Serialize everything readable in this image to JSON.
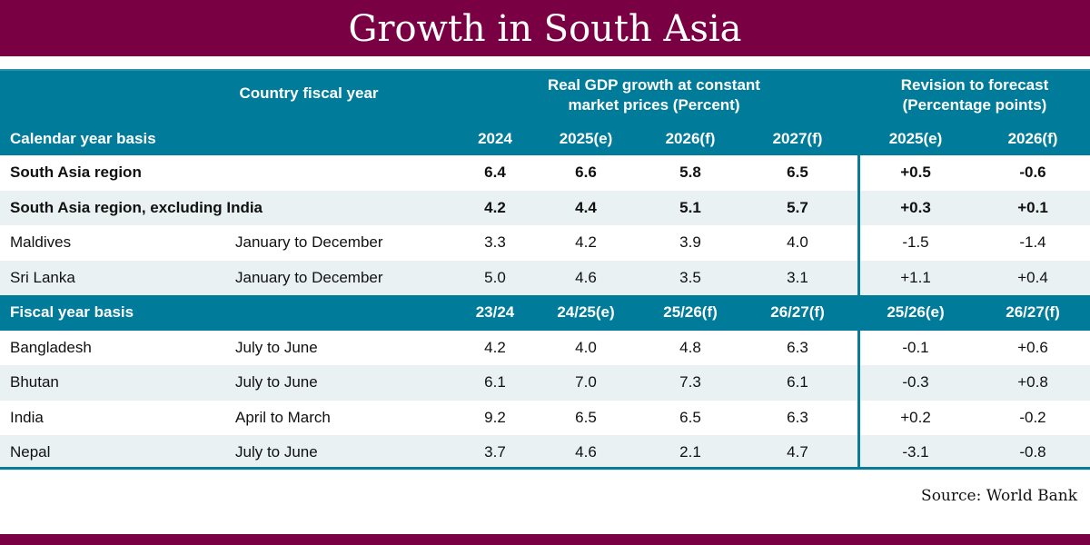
{
  "title": "Growth in South Asia",
  "header": {
    "country_fiscal_year": "Country fiscal year",
    "gdp_group": "Real GDP growth at constant market prices (Percent)",
    "gdp_group_line1": "Real GDP growth at constant",
    "gdp_group_line2": "market prices (Percent)",
    "revision_group_line1": "Revision to forecast",
    "revision_group_line2": "(Percentage points)"
  },
  "colors": {
    "title_bar": "#7a0044",
    "header": "#007b99",
    "stripe": "#e9f1f3"
  },
  "sections": [
    {
      "label": "Calendar year basis",
      "columns": [
        "2024",
        "2025(e)",
        "2026(f)",
        "2027(f)",
        "2025(e)",
        "2026(f)"
      ],
      "rows": [
        {
          "name": "South Asia region",
          "fiscal": "",
          "bold": true,
          "values": [
            "6.4",
            "6.6",
            "5.8",
            "6.5",
            "+0.5",
            "-0.6"
          ]
        },
        {
          "name": "South Asia region, excluding India",
          "fiscal": "",
          "bold": true,
          "values": [
            "4.2",
            "4.4",
            "5.1",
            "5.7",
            "+0.3",
            "+0.1"
          ]
        },
        {
          "name": "Maldives",
          "fiscal": "January to December",
          "bold": false,
          "values": [
            "3.3",
            "4.2",
            "3.9",
            "4.0",
            "-1.5",
            "-1.4"
          ]
        },
        {
          "name": "Sri Lanka",
          "fiscal": "January to December",
          "bold": false,
          "values": [
            "5.0",
            "4.6",
            "3.5",
            "3.1",
            "+1.1",
            "+0.4"
          ]
        }
      ]
    },
    {
      "label": "Fiscal year basis",
      "columns": [
        "23/24",
        "24/25(e)",
        "25/26(f)",
        "26/27(f)",
        "25/26(e)",
        "26/27(f)"
      ],
      "rows": [
        {
          "name": "Bangladesh",
          "fiscal": "July to June",
          "bold": false,
          "values": [
            "4.2",
            "4.0",
            "4.8",
            "6.3",
            "-0.1",
            "+0.6"
          ]
        },
        {
          "name": "Bhutan",
          "fiscal": "July to June",
          "bold": false,
          "values": [
            "6.1",
            "7.0",
            "7.3",
            "6.1",
            "-0.3",
            "+0.8"
          ]
        },
        {
          "name": "India",
          "fiscal": "April to March",
          "bold": false,
          "values": [
            "9.2",
            "6.5",
            "6.5",
            "6.3",
            "+0.2",
            "-0.2"
          ]
        },
        {
          "name": "Nepal",
          "fiscal": "July to June",
          "bold": false,
          "values": [
            "3.7",
            "4.6",
            "2.1",
            "4.7",
            "-3.1",
            "-0.8"
          ]
        }
      ]
    }
  ],
  "source": "Source: World Bank"
}
